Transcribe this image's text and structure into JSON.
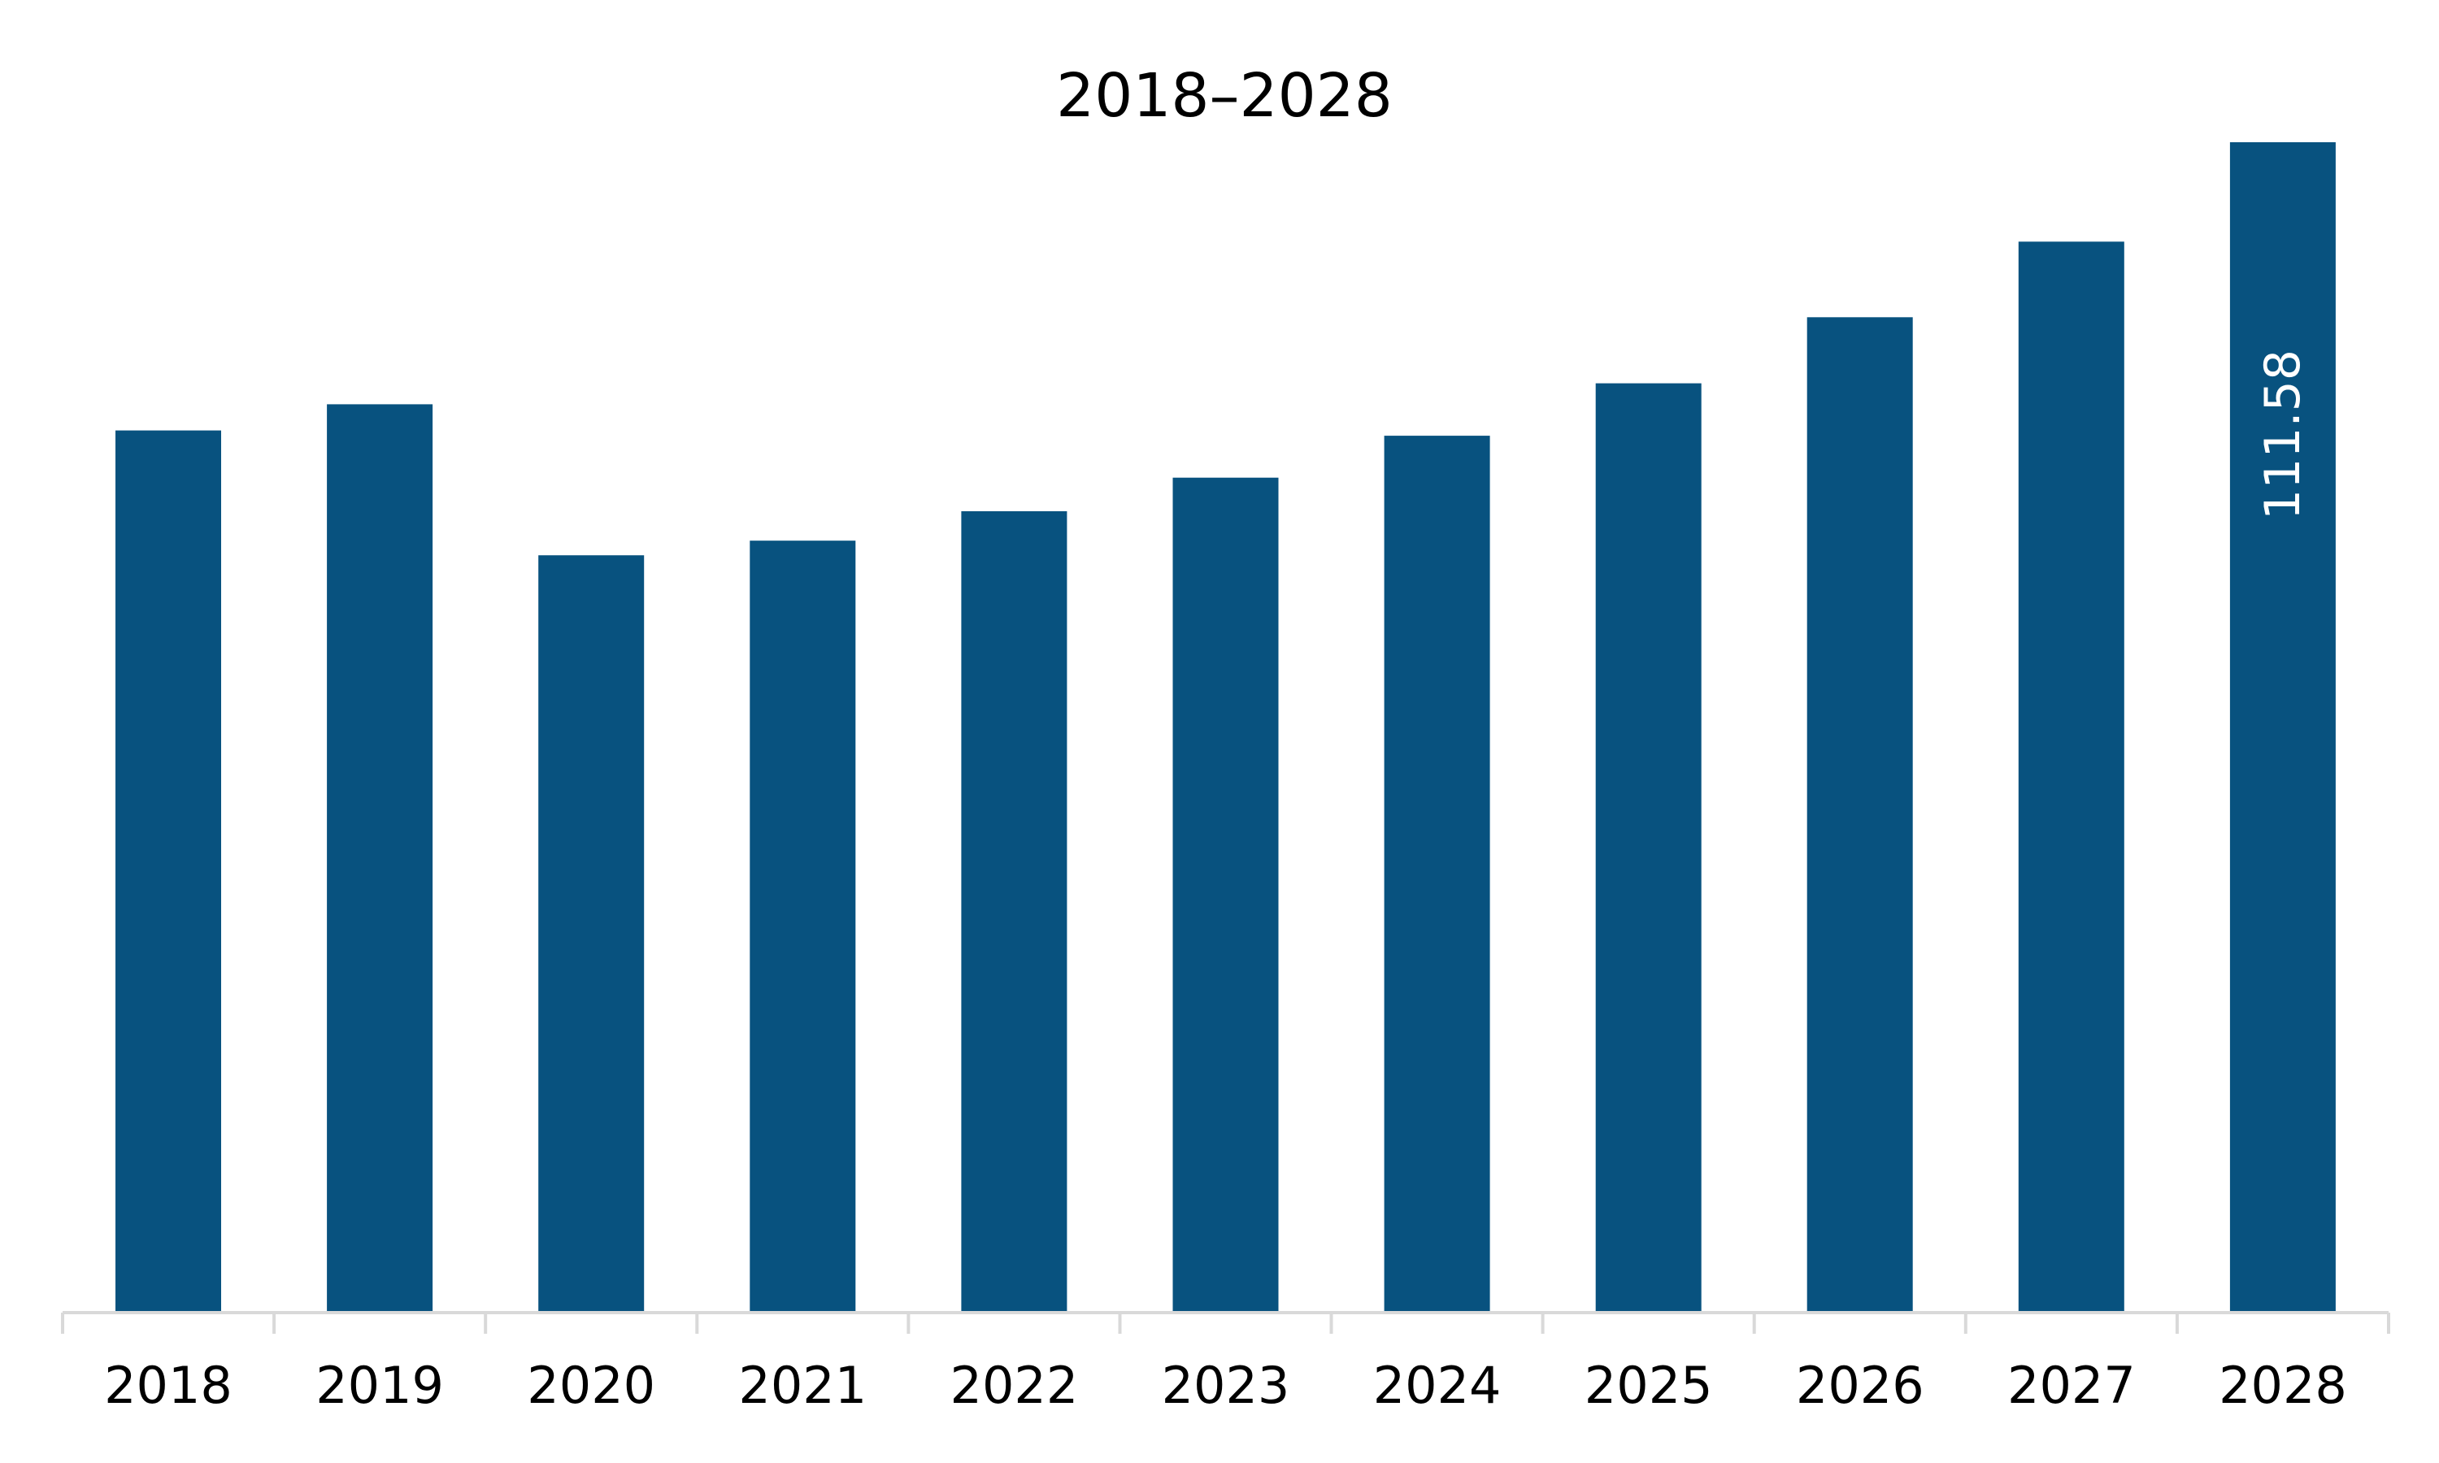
{
  "chart_data": {
    "type": "bar",
    "title": "2018–2028",
    "xlabel": "",
    "ylabel": "",
    "categories": [
      "2018",
      "2019",
      "2020",
      "2021",
      "2022",
      "2023",
      "2024",
      "2025",
      "2026",
      "2027",
      "2028"
    ],
    "values": [
      84.1,
      86.6,
      72.2,
      73.6,
      76.4,
      79.6,
      83.6,
      88.6,
      94.9,
      102.1,
      111.58
    ],
    "data_labels": {
      "2028": "111.58"
    },
    "ylim": [
      0,
      111.58
    ],
    "grid": false,
    "legend": "none",
    "colors": {
      "bar": "#08527f",
      "axis": "#d9d9d9",
      "text": "#000000",
      "data_label": "#ffffff"
    }
  }
}
